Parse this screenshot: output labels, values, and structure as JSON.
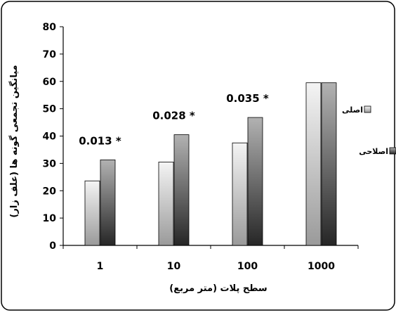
{
  "chart_data": {
    "type": "bar",
    "categories": [
      "1",
      "10",
      "100",
      "1000"
    ],
    "series": [
      {
        "name": "اصلی",
        "values": [
          23.6,
          30.5,
          37.5,
          59.5
        ],
        "color": "light"
      },
      {
        "name": "اصلاحی",
        "values": [
          31.3,
          40.5,
          46.8,
          59.5
        ],
        "color": "dark"
      }
    ],
    "annotations": [
      "0.013 *",
      "0.028 *",
      "0.035 *",
      ""
    ],
    "xlabel": "سطح پلات (متر مربع)",
    "ylabel": "میانگین تجمعی گونه ها (علف زار)",
    "yticks": [
      "0",
      "10",
      "20",
      "30",
      "40",
      "50",
      "60",
      "70",
      "80"
    ],
    "ylim": [
      0,
      80
    ],
    "legend_position": "right",
    "grid": false
  }
}
